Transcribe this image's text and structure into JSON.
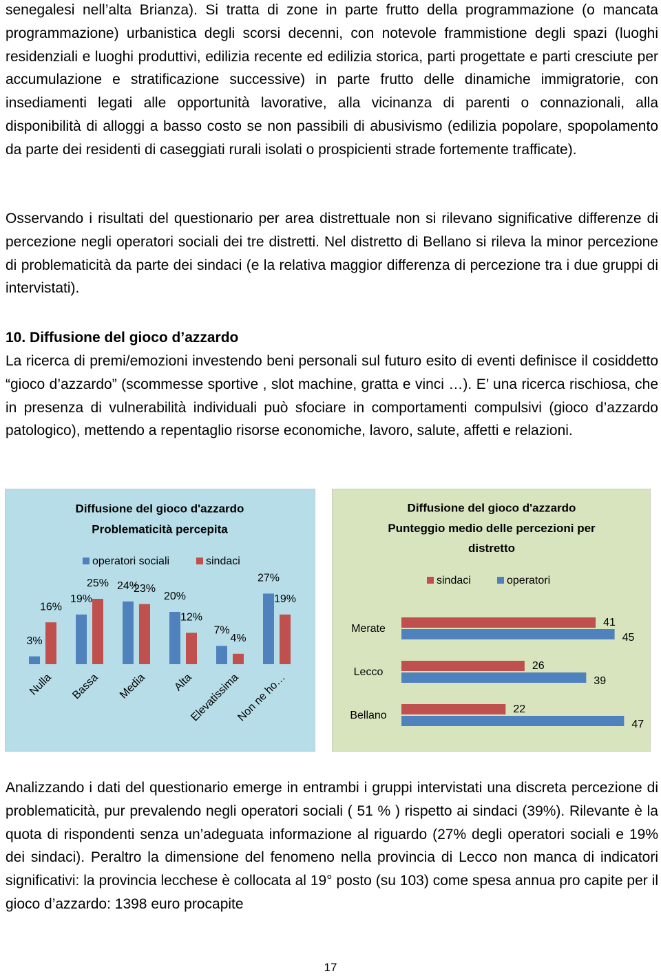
{
  "paragraphs": [
    "senegalesi nell’alta Brianza). Si tratta di zone in parte frutto della programmazione (o mancata programmazione) urbanistica degli scorsi decenni, con notevole frammistione degli spazi (luoghi residenziali e luoghi produttivi, edilizia recente ed edilizia storica, parti progettate e parti cresciute per accumulazione e stratificazione successive) in parte frutto delle dinamiche immigratorie, con insediamenti legati alle opportunità lavorative, alla vicinanza di parenti o connazionali, alla disponibilità di alloggi a basso costo se non passibili di abusivismo (edilizia popolare, spopolamento da parte dei residenti di caseggiati rurali isolati o prospicienti strade fortemente trafficate).",
    "Osservando i risultati del questionario per area distrettuale non si rilevano significative differenze di percezione negli operatori sociali dei tre distretti. Nel distretto di Bellano si rileva la minor percezione di problematicità da parte dei sindaci (e la relativa maggior differenza di percezione tra i due gruppi di intervistati).",
    "La ricerca di premi/emozioni  investendo beni personali sul futuro esito di eventi definisce  il cosiddetto “gioco d’azzardo” (scommesse sportive , slot machine, gratta e vinci …). E’ una ricerca rischiosa, che in presenza di vulnerabilità individuali può sfociare in comportamenti compulsivi (gioco d’azzardo patologico), mettendo a repentaglio risorse economiche, lavoro, salute,  affetti e relazioni.",
    "Analizzando i dati del questionario emerge in entrambi i gruppi intervistati una discreta percezione di problematicità, pur prevalendo negli operatori sociali  ( 51 % ) rispetto ai sindaci (39%). Rilevante è la quota di rispondenti senza un’adeguata informazione al riguardo (27% degli operatori sociali e 19% dei sindaci). Peraltro la dimensione del fenomeno  nella provincia di Lecco non manca di indicatori significativi:  la provincia lecchese è collocata al 19° posto (su 103) come spesa annua pro capite per il gioco d’azzardo: 1398 euro procapite"
  ],
  "heading": "10. Diffusione del gioco d’azzardo",
  "chart_data": [
    {
      "type": "bar",
      "title": "Diffusione del gioco d'azzardo",
      "subtitle": "Problematicità percepita",
      "categories": [
        "Nulla",
        "Bassa",
        "Media",
        "Alta",
        "Elevatissima",
        "Non ne ho…"
      ],
      "series": [
        {
          "name": "operatori sociali",
          "color": "#4f81bd",
          "values": [
            3,
            19,
            24,
            20,
            7,
            27
          ],
          "value_labels": [
            "3%",
            "19%",
            "24%",
            "20%",
            "7%",
            "27%"
          ]
        },
        {
          "name": "sindaci",
          "color": "#c0504d",
          "values": [
            16,
            25,
            23,
            12,
            4,
            19
          ],
          "value_labels": [
            "16%",
            "25%",
            "23%",
            "12%",
            "4%",
            "19%"
          ]
        }
      ],
      "legend": "top",
      "background": "#b7dee8"
    },
    {
      "type": "hbar",
      "title": "Diffusione del gioco d'azzardo",
      "subtitle": "Punteggio medio delle percezioni per distretto",
      "categories": [
        "Merate",
        "Lecco",
        "Bellano"
      ],
      "series": [
        {
          "name": "sindaci",
          "color": "#c0504d",
          "values": [
            41,
            26,
            22
          ]
        },
        {
          "name": "operatori",
          "color": "#4f81bd",
          "values": [
            45,
            39,
            47
          ]
        }
      ],
      "legend": "top",
      "background": "#d7e4bd"
    }
  ],
  "page_number": "17"
}
